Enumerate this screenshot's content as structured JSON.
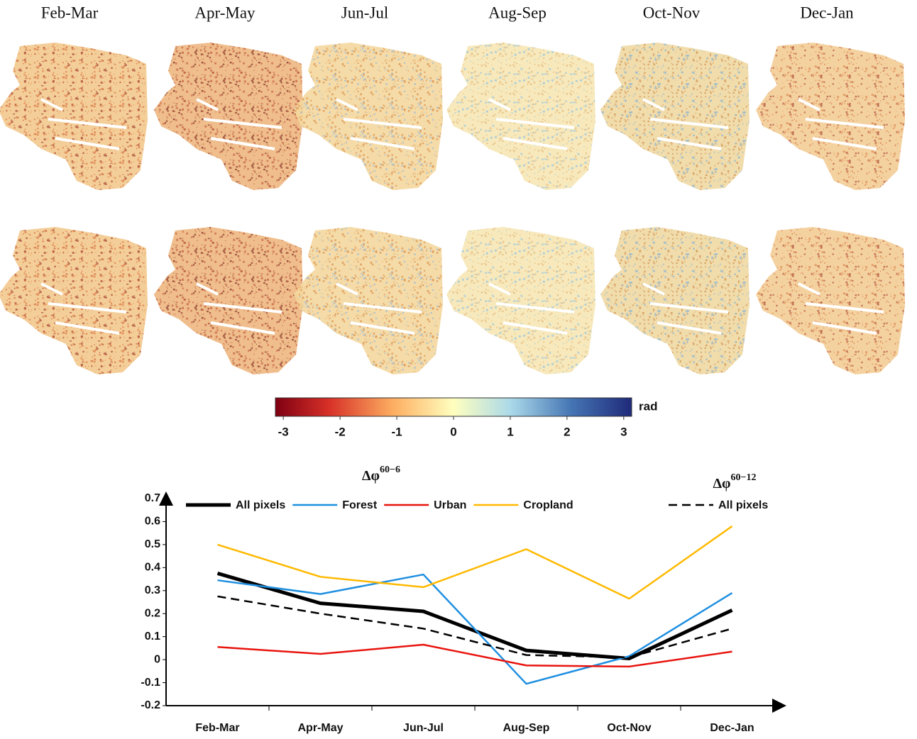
{
  "maps": {
    "columns": [
      "Feb-Mar",
      "Apr-May",
      "Jun-Jul",
      "Aug-Sep",
      "Oct-Nov",
      "Dec-Jan"
    ]
  },
  "colorbar": {
    "ticks": [
      -3,
      -2,
      -1,
      0,
      1,
      2,
      3
    ],
    "lim": [
      -3.14,
      3.14
    ],
    "unit": "rad"
  },
  "chart_data": {
    "type": "line",
    "categories": [
      "Feb-Mar",
      "Apr-May",
      "Jun-Jul",
      "Aug-Sep",
      "Oct-Nov",
      "Dec-Jan"
    ],
    "series": [
      {
        "name": "All pixels",
        "color": "#000000",
        "width": 5,
        "dash": false,
        "values": [
          0.375,
          0.245,
          0.21,
          0.04,
          0.005,
          0.215
        ]
      },
      {
        "name": "Forest",
        "color": "#1f8fe0",
        "width": 2.5,
        "dash": false,
        "values": [
          0.345,
          0.285,
          0.37,
          -0.105,
          0.015,
          0.29
        ]
      },
      {
        "name": "Urban",
        "color": "#e8140f",
        "width": 2.5,
        "dash": false,
        "values": [
          0.055,
          0.025,
          0.065,
          -0.025,
          -0.03,
          0.035
        ]
      },
      {
        "name": "Cropland",
        "color": "#ffb900",
        "width": 2.5,
        "dash": false,
        "values": [
          0.5,
          0.36,
          0.315,
          0.48,
          0.265,
          0.58
        ]
      },
      {
        "name": "All pixels",
        "color": "#000000",
        "width": 2.5,
        "dash": true,
        "values": [
          0.275,
          0.2,
          0.135,
          0.02,
          0.01,
          0.135
        ]
      }
    ],
    "annotations": [
      {
        "text": "Δφ",
        "sup": "60−6"
      },
      {
        "text": "Δφ",
        "sup": "60−12"
      }
    ],
    "ylim": [
      -0.2,
      0.7
    ],
    "yticks": [
      -0.2,
      -0.1,
      0,
      0.1,
      0.2,
      0.3,
      0.4,
      0.5,
      0.6,
      0.7
    ]
  }
}
